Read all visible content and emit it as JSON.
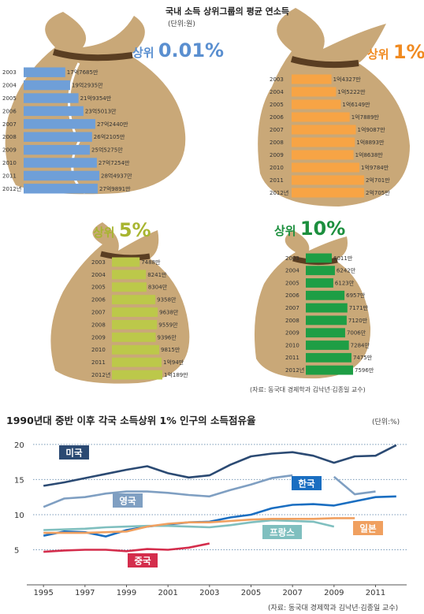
{
  "header": {
    "title": "국내 소득 상위그룹의 평균 연소득",
    "unit": "(단위:원)"
  },
  "colors": {
    "blue": "#6f9fd8",
    "orange": "#f7a445",
    "yellowgreen": "#bcc84a",
    "green": "#1e9e45",
    "bag": "#c9a878",
    "bag_dark": "#a98656",
    "line_us": "#2b4a73",
    "line_uk": "#7f9fc2",
    "line_kr": "#1a6ec1",
    "line_fr": "#7fbfbf",
    "line_jp": "#f0a060",
    "line_cn": "#d42d4c"
  },
  "chart_data": [
    {
      "type": "bar",
      "title": "상위 0.01%",
      "categories": [
        "2003",
        "2004",
        "2005",
        "2006",
        "2007",
        "2008",
        "2009",
        "2010",
        "2011",
        "2012년"
      ],
      "labels": [
        "17억7685만",
        "19억2935만",
        "21억9354만",
        "23억5013만",
        "27억2440만",
        "26억2105만",
        "25억5275만",
        "27억7254만",
        "28억4937만",
        "27억9891만"
      ],
      "values": [
        177685,
        192935,
        219354,
        235013,
        272440,
        262105,
        255275,
        277254,
        284937,
        279891
      ],
      "unit": "만원"
    },
    {
      "type": "bar",
      "title": "상위 1%",
      "categories": [
        "2003",
        "2004",
        "2005",
        "2006",
        "2007",
        "2008",
        "2009",
        "2010",
        "2011",
        "2012년"
      ],
      "labels": [
        "1억4327만",
        "1억5222만",
        "1억6149만",
        "1억7889만",
        "1억9087만",
        "1억8893만",
        "1억8638만",
        "1억9784만",
        "2억701만",
        "2억705만"
      ],
      "values": [
        14327,
        15222,
        16149,
        17889,
        19087,
        18893,
        18638,
        19784,
        20701,
        20705
      ],
      "unit": "만원"
    },
    {
      "type": "bar",
      "title": "상위 5%",
      "categories": [
        "2003",
        "2004",
        "2005",
        "2006",
        "2007",
        "2008",
        "2009",
        "2010",
        "2011",
        "2012년"
      ],
      "labels": [
        "7488만",
        "8241만",
        "8304만",
        "9358만",
        "9638만",
        "9559만",
        "9396만",
        "9815만",
        "1억94만",
        "1억189만"
      ],
      "values": [
        7488,
        8241,
        8304,
        9358,
        9638,
        9559,
        9396,
        9815,
        10094,
        10189
      ],
      "unit": "만원"
    },
    {
      "type": "bar",
      "title": "상위 10%",
      "categories": [
        "2003",
        "2004",
        "2005",
        "2006",
        "2007",
        "2008",
        "2009",
        "2010",
        "2011",
        "2012년"
      ],
      "labels": [
        "6011만",
        "6242만",
        "6123만",
        "6957만",
        "7171만",
        "7120만",
        "7006만",
        "7284만",
        "7475만",
        "7596만"
      ],
      "values": [
        6011,
        6242,
        6123,
        6957,
        7171,
        7120,
        7006,
        7284,
        7475,
        7596
      ],
      "unit": "만원"
    },
    {
      "type": "line",
      "title": "1990년대 중반 이후 각국 소득상위 1% 인구의 소득점유율",
      "unit_label": "(단위:%)",
      "x_ticks": [
        "1995",
        "1997",
        "1999",
        "2001",
        "2003",
        "2005",
        "2007",
        "2009",
        "2011"
      ],
      "y_ticks": [
        "20",
        "15",
        "10",
        "5"
      ],
      "xlim": [
        1994.5,
        2012.5
      ],
      "ylim": [
        0,
        21
      ],
      "grid": "horizontal-dotted",
      "series": [
        {
          "name": "미국",
          "color_key": "line_us",
          "x": [
            1995,
            1996,
            1997,
            1998,
            1999,
            2000,
            2001,
            2002,
            2003,
            2004,
            2005,
            2006,
            2007,
            2008,
            2009,
            2010,
            2011,
            2012
          ],
          "values": [
            14.1,
            14.6,
            15.2,
            15.8,
            16.4,
            16.9,
            15.9,
            15.3,
            15.6,
            17.1,
            18.3,
            18.7,
            18.9,
            18.4,
            17.4,
            18.3,
            18.4,
            19.9
          ]
        },
        {
          "name": "영국",
          "color_key": "line_uk",
          "x": [
            1995,
            1996,
            1997,
            1998,
            1999,
            2000,
            2001,
            2002,
            2003,
            2004,
            2005,
            2006,
            2007
          ],
          "values": [
            11.1,
            12.3,
            12.5,
            13.0,
            13.3,
            13.3,
            13.1,
            12.8,
            12.6,
            13.5,
            14.3,
            15.2,
            15.6
          ]
        },
        {
          "name": "영국",
          "color_key": "line_uk",
          "x": [
            2009,
            2010,
            2011
          ],
          "values": [
            15.4,
            12.9,
            13.3
          ]
        },
        {
          "name": "한국",
          "color_key": "line_kr",
          "x": [
            1995,
            1996,
            1997,
            1998,
            1999,
            2000,
            2001,
            2002,
            2003,
            2004,
            2005,
            2006,
            2007,
            2008,
            2009,
            2010,
            2011,
            2012
          ],
          "values": [
            7.0,
            7.6,
            7.5,
            6.9,
            7.8,
            8.3,
            8.6,
            8.9,
            9.0,
            9.6,
            10.0,
            10.9,
            11.4,
            11.5,
            11.3,
            11.9,
            12.5,
            12.6
          ]
        },
        {
          "name": "프랑스",
          "color_key": "line_fr",
          "x": [
            1995,
            1996,
            1997,
            1998,
            1999,
            2000,
            2001,
            2002,
            2003,
            2004,
            2005,
            2006,
            2007,
            2008,
            2009
          ],
          "values": [
            7.8,
            7.9,
            8.0,
            8.2,
            8.3,
            8.4,
            8.4,
            8.3,
            8.2,
            8.5,
            8.9,
            9.2,
            9.1,
            9.0,
            8.3
          ]
        },
        {
          "name": "일본",
          "color_key": "line_jp",
          "x": [
            1995,
            1996,
            1997,
            1998,
            1999,
            2000,
            2001,
            2002,
            2003,
            2004,
            2005,
            2006,
            2007,
            2008,
            2009,
            2010
          ],
          "values": [
            7.4,
            7.4,
            7.4,
            7.5,
            7.6,
            8.3,
            8.7,
            8.9,
            8.9,
            9.1,
            9.3,
            9.4,
            9.4,
            9.4,
            9.5,
            9.5
          ]
        },
        {
          "name": "중국",
          "color_key": "line_cn",
          "x": [
            1995,
            1996,
            1997,
            1998,
            1999,
            2000,
            2001,
            2002,
            2003
          ],
          "values": [
            4.7,
            4.9,
            5.0,
            5.0,
            4.8,
            5.1,
            5.0,
            5.3,
            5.9
          ]
        }
      ],
      "source": "(자료: 동국대 경제학과 김낙년·김종일 교수)"
    }
  ],
  "source_top": "(자료: 동국대 경제학과 김낙년·김종일 교수)"
}
